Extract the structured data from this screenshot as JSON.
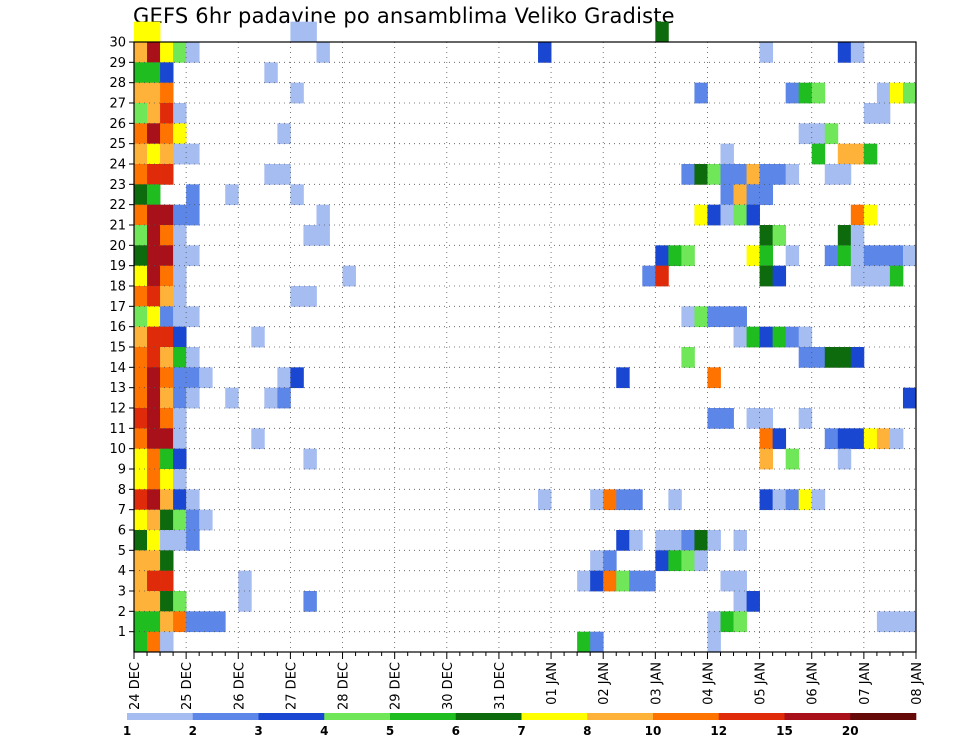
{
  "title": "GEFS 6hr padavine po ansamblima Veliko Gradiste",
  "chart_data": {
    "type": "heatmap",
    "title": "GEFS 6hr padavine po ansamblima Veliko Gradiste",
    "xlabel": "",
    "ylabel": "",
    "x_tick_labels": [
      "24 DEC",
      "25 DEC",
      "26 DEC",
      "27 DEC",
      "28 DEC",
      "29 DEC",
      "30 DEC",
      "31 DEC",
      "01 JAN",
      "02 JAN",
      "03 JAN",
      "04 JAN",
      "05 JAN",
      "06 JAN",
      "07 JAN",
      "08 JAN"
    ],
    "y_tick_labels": [
      "1",
      "2",
      "3",
      "4",
      "5",
      "6",
      "7",
      "8",
      "9",
      "10",
      "11",
      "12",
      "13",
      "14",
      "15",
      "16",
      "17",
      "18",
      "19",
      "20",
      "21",
      "22",
      "23",
      "24",
      "25",
      "26",
      "27",
      "28",
      "29",
      "30"
    ],
    "x_axis": {
      "unit": "6-hour step",
      "range": [
        0,
        60
      ],
      "steps_per_day": 4
    },
    "y_axis": {
      "unit": "ensemble member",
      "range": [
        0,
        30
      ]
    },
    "grid": "dotted",
    "colorbar": {
      "position": "bottom",
      "labels": [
        "1",
        "2",
        "3",
        "4",
        "5",
        "6",
        "7",
        "8",
        "10",
        "12",
        "15",
        "20"
      ],
      "colors": [
        "#a6bdf2",
        "#5c86e8",
        "#1a47d1",
        "#70e659",
        "#1fbd1f",
        "#0d6b0d",
        "#ffff00",
        "#ffb23a",
        "#ff7300",
        "#e02b0a",
        "#a8101a",
        "#660909"
      ]
    },
    "cells": [
      [
        30,
        0,
        6
      ],
      [
        30,
        1,
        6
      ],
      [
        30,
        12,
        0
      ],
      [
        30,
        13,
        0
      ],
      [
        30,
        40,
        5
      ],
      [
        29,
        0,
        7
      ],
      [
        29,
        1,
        10
      ],
      [
        29,
        2,
        6
      ],
      [
        29,
        3,
        3
      ],
      [
        29,
        4,
        0
      ],
      [
        29,
        14,
        0
      ],
      [
        29,
        31,
        2
      ],
      [
        29,
        48,
        0
      ],
      [
        29,
        54,
        2
      ],
      [
        29,
        55,
        0
      ],
      [
        28,
        0,
        4
      ],
      [
        28,
        1,
        4
      ],
      [
        28,
        2,
        2
      ],
      [
        28,
        10,
        0
      ],
      [
        27,
        0,
        7
      ],
      [
        27,
        1,
        7
      ],
      [
        27,
        2,
        8
      ],
      [
        27,
        12,
        0
      ],
      [
        27,
        43,
        1
      ],
      [
        27,
        50,
        1
      ],
      [
        27,
        51,
        4
      ],
      [
        27,
        52,
        3
      ],
      [
        27,
        57,
        0
      ],
      [
        27,
        58,
        6
      ],
      [
        27,
        59,
        3
      ],
      [
        26,
        0,
        3
      ],
      [
        26,
        1,
        7
      ],
      [
        26,
        2,
        9
      ],
      [
        26,
        3,
        0
      ],
      [
        26,
        56,
        0
      ],
      [
        26,
        57,
        0
      ],
      [
        25,
        0,
        8
      ],
      [
        25,
        1,
        10
      ],
      [
        25,
        2,
        8
      ],
      [
        25,
        3,
        6
      ],
      [
        25,
        11,
        0
      ],
      [
        25,
        51,
        0
      ],
      [
        25,
        52,
        0
      ],
      [
        25,
        53,
        3
      ],
      [
        24,
        0,
        7
      ],
      [
        24,
        1,
        6
      ],
      [
        24,
        2,
        7
      ],
      [
        24,
        3,
        0
      ],
      [
        24,
        4,
        0
      ],
      [
        24,
        45,
        0
      ],
      [
        24,
        52,
        4
      ],
      [
        24,
        54,
        7
      ],
      [
        24,
        55,
        7
      ],
      [
        24,
        56,
        4
      ],
      [
        23,
        0,
        8
      ],
      [
        23,
        1,
        9
      ],
      [
        23,
        2,
        9
      ],
      [
        23,
        10,
        0
      ],
      [
        23,
        11,
        0
      ],
      [
        23,
        42,
        1
      ],
      [
        23,
        43,
        5
      ],
      [
        23,
        44,
        3
      ],
      [
        23,
        45,
        1
      ],
      [
        23,
        46,
        1
      ],
      [
        23,
        47,
        7
      ],
      [
        23,
        48,
        1
      ],
      [
        23,
        49,
        1
      ],
      [
        23,
        50,
        0
      ],
      [
        23,
        53,
        0
      ],
      [
        23,
        54,
        0
      ],
      [
        22,
        0,
        5
      ],
      [
        22,
        1,
        4
      ],
      [
        22,
        4,
        1
      ],
      [
        22,
        7,
        0
      ],
      [
        22,
        12,
        0
      ],
      [
        22,
        45,
        1
      ],
      [
        22,
        46,
        7
      ],
      [
        22,
        47,
        1
      ],
      [
        22,
        48,
        1
      ],
      [
        21,
        0,
        8
      ],
      [
        21,
        1,
        10
      ],
      [
        21,
        2,
        10
      ],
      [
        21,
        3,
        1
      ],
      [
        21,
        4,
        1
      ],
      [
        21,
        14,
        0
      ],
      [
        21,
        43,
        6
      ],
      [
        21,
        44,
        2
      ],
      [
        21,
        45,
        0
      ],
      [
        21,
        46,
        3
      ],
      [
        21,
        47,
        2
      ],
      [
        21,
        55,
        8
      ],
      [
        21,
        56,
        6
      ],
      [
        20,
        0,
        3
      ],
      [
        20,
        1,
        10
      ],
      [
        20,
        2,
        8
      ],
      [
        20,
        3,
        0
      ],
      [
        20,
        13,
        0
      ],
      [
        20,
        14,
        0
      ],
      [
        20,
        48,
        5
      ],
      [
        20,
        49,
        3
      ],
      [
        20,
        54,
        5
      ],
      [
        20,
        55,
        0
      ],
      [
        19,
        0,
        5
      ],
      [
        19,
        1,
        10
      ],
      [
        19,
        2,
        10
      ],
      [
        19,
        3,
        0
      ],
      [
        19,
        4,
        0
      ],
      [
        19,
        40,
        2
      ],
      [
        19,
        41,
        4
      ],
      [
        19,
        42,
        3
      ],
      [
        19,
        47,
        6
      ],
      [
        19,
        48,
        4
      ],
      [
        19,
        50,
        0
      ],
      [
        19,
        53,
        1
      ],
      [
        19,
        54,
        4
      ],
      [
        19,
        55,
        0
      ],
      [
        19,
        56,
        1
      ],
      [
        19,
        57,
        1
      ],
      [
        19,
        58,
        1
      ],
      [
        19,
        59,
        0
      ],
      [
        18,
        0,
        6
      ],
      [
        18,
        1,
        10
      ],
      [
        18,
        2,
        8
      ],
      [
        18,
        3,
        0
      ],
      [
        18,
        16,
        0
      ],
      [
        18,
        39,
        1
      ],
      [
        18,
        40,
        9
      ],
      [
        18,
        48,
        5
      ],
      [
        18,
        49,
        2
      ],
      [
        18,
        55,
        0
      ],
      [
        18,
        56,
        0
      ],
      [
        18,
        57,
        0
      ],
      [
        18,
        58,
        4
      ],
      [
        17,
        0,
        8
      ],
      [
        17,
        1,
        9
      ],
      [
        17,
        2,
        7
      ],
      [
        17,
        3,
        0
      ],
      [
        17,
        12,
        0
      ],
      [
        17,
        13,
        0
      ],
      [
        16,
        0,
        3
      ],
      [
        16,
        1,
        6
      ],
      [
        16,
        2,
        1
      ],
      [
        16,
        3,
        0
      ],
      [
        16,
        4,
        0
      ],
      [
        16,
        42,
        0
      ],
      [
        16,
        43,
        3
      ],
      [
        16,
        44,
        1
      ],
      [
        16,
        45,
        1
      ],
      [
        16,
        46,
        1
      ],
      [
        15,
        0,
        7
      ],
      [
        15,
        1,
        9
      ],
      [
        15,
        2,
        9
      ],
      [
        15,
        3,
        2
      ],
      [
        15,
        9,
        0
      ],
      [
        15,
        46,
        0
      ],
      [
        15,
        47,
        4
      ],
      [
        15,
        48,
        2
      ],
      [
        15,
        49,
        4
      ],
      [
        15,
        50,
        1
      ],
      [
        15,
        51,
        0
      ],
      [
        14,
        0,
        8
      ],
      [
        14,
        1,
        9
      ],
      [
        14,
        2,
        7
      ],
      [
        14,
        3,
        4
      ],
      [
        14,
        4,
        0
      ],
      [
        14,
        42,
        3
      ],
      [
        14,
        51,
        1
      ],
      [
        14,
        52,
        1
      ],
      [
        14,
        53,
        5
      ],
      [
        14,
        54,
        5
      ],
      [
        14,
        55,
        2
      ],
      [
        13,
        0,
        8
      ],
      [
        13,
        1,
        10
      ],
      [
        13,
        2,
        8
      ],
      [
        13,
        3,
        1
      ],
      [
        13,
        4,
        1
      ],
      [
        13,
        5,
        0
      ],
      [
        13,
        11,
        0
      ],
      [
        13,
        12,
        2
      ],
      [
        13,
        37,
        2
      ],
      [
        13,
        44,
        8
      ],
      [
        12,
        0,
        8
      ],
      [
        12,
        1,
        10
      ],
      [
        12,
        2,
        7
      ],
      [
        12,
        3,
        1
      ],
      [
        12,
        4,
        0
      ],
      [
        12,
        7,
        0
      ],
      [
        12,
        10,
        0
      ],
      [
        12,
        11,
        1
      ],
      [
        12,
        59,
        2
      ],
      [
        11,
        0,
        9
      ],
      [
        11,
        1,
        10
      ],
      [
        11,
        2,
        8
      ],
      [
        11,
        3,
        0
      ],
      [
        11,
        44,
        1
      ],
      [
        11,
        45,
        1
      ],
      [
        11,
        47,
        0
      ],
      [
        11,
        48,
        0
      ],
      [
        11,
        51,
        0
      ],
      [
        10,
        0,
        8
      ],
      [
        10,
        1,
        10
      ],
      [
        10,
        2,
        10
      ],
      [
        10,
        3,
        0
      ],
      [
        10,
        9,
        0
      ],
      [
        10,
        48,
        8
      ],
      [
        10,
        49,
        2
      ],
      [
        10,
        53,
        1
      ],
      [
        10,
        54,
        2
      ],
      [
        10,
        55,
        2
      ],
      [
        10,
        56,
        6
      ],
      [
        10,
        57,
        7
      ],
      [
        10,
        58,
        0
      ],
      [
        9,
        0,
        6
      ],
      [
        9,
        1,
        8
      ],
      [
        9,
        2,
        4
      ],
      [
        9,
        3,
        2
      ],
      [
        9,
        13,
        0
      ],
      [
        9,
        48,
        7
      ],
      [
        9,
        50,
        3
      ],
      [
        9,
        54,
        0
      ],
      [
        8,
        0,
        6
      ],
      [
        8,
        1,
        8
      ],
      [
        8,
        2,
        6
      ],
      [
        8,
        3,
        0
      ],
      [
        7,
        0,
        9
      ],
      [
        7,
        1,
        10
      ],
      [
        7,
        2,
        7
      ],
      [
        7,
        3,
        2
      ],
      [
        7,
        4,
        0
      ],
      [
        7,
        31,
        0
      ],
      [
        7,
        35,
        0
      ],
      [
        7,
        36,
        8
      ],
      [
        7,
        37,
        1
      ],
      [
        7,
        38,
        1
      ],
      [
        7,
        41,
        0
      ],
      [
        7,
        48,
        2
      ],
      [
        7,
        49,
        0
      ],
      [
        7,
        50,
        1
      ],
      [
        7,
        51,
        6
      ],
      [
        7,
        52,
        0
      ],
      [
        6,
        0,
        6
      ],
      [
        6,
        1,
        7
      ],
      [
        6,
        2,
        5
      ],
      [
        6,
        3,
        3
      ],
      [
        6,
        4,
        1
      ],
      [
        6,
        5,
        0
      ],
      [
        5,
        0,
        5
      ],
      [
        5,
        1,
        6
      ],
      [
        5,
        2,
        0
      ],
      [
        5,
        3,
        0
      ],
      [
        5,
        4,
        1
      ],
      [
        5,
        37,
        2
      ],
      [
        5,
        38,
        0
      ],
      [
        5,
        40,
        0
      ],
      [
        5,
        41,
        0
      ],
      [
        5,
        42,
        1
      ],
      [
        5,
        43,
        5
      ],
      [
        5,
        44,
        0
      ],
      [
        5,
        46,
        0
      ],
      [
        4,
        0,
        7
      ],
      [
        4,
        1,
        7
      ],
      [
        4,
        2,
        5
      ],
      [
        4,
        35,
        0
      ],
      [
        4,
        36,
        1
      ],
      [
        4,
        40,
        2
      ],
      [
        4,
        41,
        4
      ],
      [
        4,
        42,
        3
      ],
      [
        4,
        43,
        0
      ],
      [
        3,
        0,
        7
      ],
      [
        3,
        1,
        9
      ],
      [
        3,
        2,
        9
      ],
      [
        3,
        8,
        0
      ],
      [
        3,
        34,
        0
      ],
      [
        3,
        35,
        2
      ],
      [
        3,
        36,
        8
      ],
      [
        3,
        37,
        3
      ],
      [
        3,
        38,
        1
      ],
      [
        3,
        39,
        1
      ],
      [
        3,
        45,
        0
      ],
      [
        3,
        46,
        0
      ],
      [
        2,
        0,
        7
      ],
      [
        2,
        1,
        7
      ],
      [
        2,
        2,
        5
      ],
      [
        2,
        3,
        3
      ],
      [
        2,
        8,
        0
      ],
      [
        2,
        13,
        1
      ],
      [
        2,
        46,
        0
      ],
      [
        2,
        47,
        2
      ],
      [
        1,
        0,
        4
      ],
      [
        1,
        1,
        4
      ],
      [
        1,
        2,
        7
      ],
      [
        1,
        3,
        8
      ],
      [
        1,
        4,
        1
      ],
      [
        1,
        5,
        1
      ],
      [
        1,
        6,
        1
      ],
      [
        1,
        44,
        0
      ],
      [
        1,
        45,
        4
      ],
      [
        1,
        46,
        3
      ],
      [
        1,
        57,
        0
      ],
      [
        1,
        58,
        0
      ],
      [
        1,
        59,
        0
      ],
      [
        0,
        0,
        4
      ],
      [
        0,
        1,
        8
      ],
      [
        0,
        2,
        0
      ],
      [
        0,
        34,
        4
      ],
      [
        0,
        35,
        1
      ],
      [
        0,
        44,
        0
      ]
    ]
  }
}
